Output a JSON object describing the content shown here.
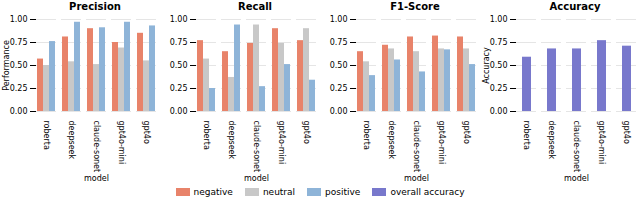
{
  "chart_data": [
    {
      "type": "bar",
      "title": "Precision",
      "categories": [
        "roberta",
        "deepseek",
        "claude-sonet",
        "gpt4o-mini",
        "gpt4o"
      ],
      "series": [
        {
          "name": "negative",
          "color": "#E8836A",
          "values": [
            0.57,
            0.81,
            0.9,
            0.75,
            0.85
          ]
        },
        {
          "name": "neutral",
          "color": "#C8C8C8",
          "values": [
            0.5,
            0.54,
            0.51,
            0.69,
            0.55
          ]
        },
        {
          "name": "positive",
          "color": "#8EB4D8",
          "values": [
            0.76,
            0.97,
            0.91,
            0.97,
            0.93
          ]
        }
      ],
      "xlabel": "model",
      "ylabel": "Performance",
      "ylim": [
        0.0,
        1.0
      ],
      "yticks": [
        {
          "value": 0,
          "label": "0.00"
        },
        0.25,
        {
          "value": 0.5,
          "label": "0.50"
        },
        0.75,
        {
          "value": 1,
          "label": "1.00"
        }
      ],
      "grid": true,
      "legend": "bottom"
    },
    {
      "type": "bar",
      "title": "Recall",
      "categories": [
        "roberta",
        "deepseek",
        "claude-sonet",
        "gpt4o-mini",
        "gpt4o"
      ],
      "series": [
        {
          "name": "negative",
          "color": "#E8836A",
          "values": [
            0.77,
            0.65,
            0.74,
            0.9,
            0.77
          ]
        },
        {
          "name": "neutral",
          "color": "#C8C8C8",
          "values": [
            0.57,
            0.37,
            0.94,
            0.74,
            0.9
          ]
        },
        {
          "name": "positive",
          "color": "#8EB4D8",
          "values": [
            0.25,
            0.94,
            0.27,
            0.51,
            0.34
          ]
        }
      ],
      "xlabel": "model",
      "ylim": [
        0.0,
        1.0
      ],
      "yticks": [
        {
          "value": 0,
          "label": "0.00"
        },
        0.25,
        {
          "value": 0.5,
          "label": "0.50"
        },
        0.75,
        {
          "value": 1,
          "label": "1.00"
        }
      ],
      "grid": true,
      "legend": "bottom"
    },
    {
      "type": "bar",
      "title": "F1-Score",
      "categories": [
        "roberta",
        "deepseek",
        "claude-sonet",
        "gpt4o-mini",
        "gpt4o"
      ],
      "series": [
        {
          "name": "negative",
          "color": "#E8836A",
          "values": [
            0.65,
            0.72,
            0.81,
            0.82,
            0.81
          ]
        },
        {
          "name": "neutral",
          "color": "#C8C8C8",
          "values": [
            0.54,
            0.68,
            0.65,
            0.68,
            0.68
          ]
        },
        {
          "name": "positive",
          "color": "#8EB4D8",
          "values": [
            0.39,
            0.56,
            0.43,
            0.67,
            0.51
          ]
        }
      ],
      "xlabel": "model",
      "ylim": [
        0.0,
        1.0
      ],
      "yticks": [
        {
          "value": 0,
          "label": "0.00"
        },
        0.25,
        {
          "value": 0.5,
          "label": "0.50"
        },
        0.75,
        {
          "value": 1,
          "label": "1.00"
        }
      ],
      "grid": true,
      "legend": "bottom"
    },
    {
      "type": "bar",
      "title": "Accuracy",
      "categories": [
        "roberta",
        "deepseek",
        "claude-sonet",
        "gpt4o-mini",
        "gpt4o"
      ],
      "series": [
        {
          "name": "overall accuracy",
          "color": "#7878CC",
          "values": [
            0.59,
            0.68,
            0.68,
            0.77,
            0.71
          ]
        }
      ],
      "xlabel": "model",
      "ylabel": "Accuracy",
      "ylim": [
        0.0,
        1.0
      ],
      "yticks": [
        {
          "value": 0,
          "label": "0.00"
        },
        0.25,
        {
          "value": 0.5,
          "label": "0.50"
        },
        0.75,
        {
          "value": 1,
          "label": "1.00"
        }
      ],
      "grid": true,
      "legend": "bottom"
    }
  ]
}
